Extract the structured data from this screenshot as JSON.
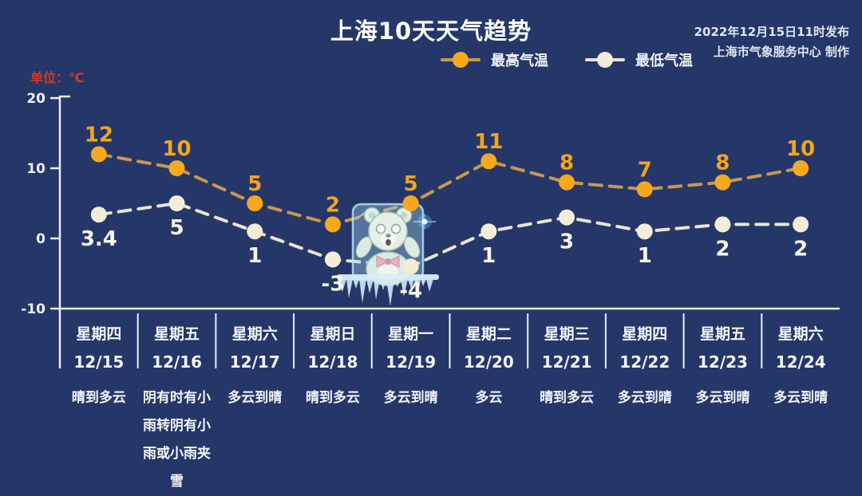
{
  "header": {
    "title": "上海10天天气趋势",
    "issued": "2022年12月15日11时发布",
    "producer": "上海市气象服务中心 制作"
  },
  "unit_label": "单位：℃",
  "legend": [
    {
      "label": "最高气温",
      "marker_color": "#f7a81d",
      "line_color": "#c89752"
    },
    {
      "label": "最低气温",
      "marker_color": "#f3ecd8",
      "line_color": "#e9e4d4"
    }
  ],
  "mascot": "frozen-bear-in-ice-cube",
  "chart_data": {
    "type": "line",
    "title": "上海10天天气趋势",
    "unit": "℃",
    "line_style": "dashed",
    "grid": false,
    "legend_position": "top-center",
    "yticks": [
      20,
      10,
      0,
      -10
    ],
    "ylim": [
      -10,
      20
    ],
    "categories": [
      {
        "weekday": "星期四",
        "date": "12/15",
        "weather": "晴到多云"
      },
      {
        "weekday": "星期五",
        "date": "12/16",
        "weather": "阴有时有小雨转阴有小雨或小雨夹雪"
      },
      {
        "weekday": "星期六",
        "date": "12/17",
        "weather": "多云到晴"
      },
      {
        "weekday": "星期日",
        "date": "12/18",
        "weather": "晴到多云"
      },
      {
        "weekday": "星期一",
        "date": "12/19",
        "weather": "多云到晴"
      },
      {
        "weekday": "星期二",
        "date": "12/20",
        "weather": "多云"
      },
      {
        "weekday": "星期三",
        "date": "12/21",
        "weather": "晴到多云"
      },
      {
        "weekday": "星期四",
        "date": "12/22",
        "weather": "多云到晴"
      },
      {
        "weekday": "星期五",
        "date": "12/23",
        "weather": "多云到晴"
      },
      {
        "weekday": "星期六",
        "date": "12/24",
        "weather": "多云到晴"
      }
    ],
    "series": [
      {
        "name": "最高气温",
        "values": [
          12,
          10,
          5,
          2,
          5,
          11,
          8,
          7,
          8,
          10
        ],
        "marker_color": "#f7a81d",
        "line_color": "#c89752",
        "label_color": "#f2a51d",
        "label_position": "above"
      },
      {
        "name": "最低气温",
        "values": [
          3.4,
          5,
          1,
          -3,
          -4,
          1,
          3,
          1,
          2,
          2
        ],
        "marker_color": "#f3ecd8",
        "line_color": "#e9e4d4",
        "label_color": "#f8f5ec",
        "label_position": "below"
      }
    ]
  }
}
